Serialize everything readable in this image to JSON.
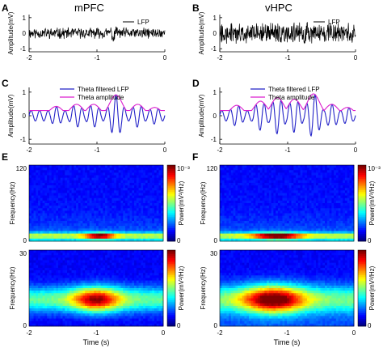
{
  "figure": {
    "col_titles": [
      "mPFC",
      "vHPC"
    ],
    "panel_letters": [
      "A",
      "B",
      "C",
      "D",
      "E",
      "F"
    ]
  },
  "chart_data": [
    {
      "panel": "A",
      "type": "line",
      "ylabel": "Amplitude(mV)",
      "xlim": [
        -2,
        0
      ],
      "ylim": [
        -1.2,
        1.2
      ],
      "xticks": [
        "-2",
        "-1",
        "0"
      ],
      "yticks": [
        "1",
        "0",
        "-1"
      ],
      "legend": [
        "LFP"
      ],
      "series": [
        {
          "name": "LFP",
          "color": "#000000"
        }
      ]
    },
    {
      "panel": "B",
      "type": "line",
      "ylabel": "Amplitude(mV)",
      "xlim": [
        -2,
        0
      ],
      "ylim": [
        -1.2,
        1.2
      ],
      "xticks": [
        "-2",
        "-1",
        "0"
      ],
      "yticks": [
        "1",
        "0",
        "-1"
      ],
      "legend": [
        "LFP"
      ],
      "series": [
        {
          "name": "LFP",
          "color": "#000000"
        }
      ]
    },
    {
      "panel": "C",
      "type": "line",
      "ylabel": "Amplitude(mV)",
      "xlim": [
        -2,
        0
      ],
      "ylim": [
        -1.2,
        1.2
      ],
      "xticks": [
        "-2",
        "-1",
        "0"
      ],
      "yticks": [
        "1",
        "0",
        "-1"
      ],
      "legend": [
        "Theta filtered LFP",
        "Theta amplitude"
      ],
      "series": [
        {
          "name": "Theta filtered LFP",
          "color": "#2323c8"
        },
        {
          "name": "Theta amplitude",
          "color": "#dc1ecf"
        }
      ]
    },
    {
      "panel": "D",
      "type": "line",
      "ylabel": "Amplitude(mV)",
      "xlim": [
        -2,
        0
      ],
      "ylim": [
        -1.2,
        1.2
      ],
      "xticks": [
        "-2",
        "-1",
        "0"
      ],
      "yticks": [
        "1",
        "0",
        "-1"
      ],
      "legend": [
        "Theta filtered LFP",
        "Theta amplitude"
      ],
      "series": [
        {
          "name": "Theta filtered LFP",
          "color": "#2323c8"
        },
        {
          "name": "Theta amplitude",
          "color": "#dc1ecf"
        }
      ]
    },
    {
      "panel": "E",
      "type": "heatmap",
      "subplots": [
        {
          "ylabel": "Frequency(Hz)",
          "ylim": [
            0,
            120
          ],
          "yticks": [
            "120",
            "0"
          ],
          "colorbar_label": "Power(mV²/Hz)",
          "colorbar_top_tick": "10⁻³",
          "colorbar_bottom_tick": "0"
        },
        {
          "ylabel": "Frequency(Hz)",
          "ylim": [
            0,
            30
          ],
          "yticks": [
            "30",
            "0"
          ],
          "colorbar_label": "Power(mV²/Hz)",
          "colorbar_top_tick": "",
          "colorbar_bottom_tick": "0"
        }
      ],
      "xlabel": "Time (s)",
      "xlim": [
        -2,
        0
      ],
      "xticks": [
        "-2",
        "-1",
        "0"
      ],
      "colormap": "jet"
    },
    {
      "panel": "F",
      "type": "heatmap",
      "subplots": [
        {
          "ylabel": "Frequency(Hz)",
          "ylim": [
            0,
            120
          ],
          "yticks": [
            "120",
            "0"
          ],
          "colorbar_label": "Power(mV²/Hz)",
          "colorbar_top_tick": "10⁻³",
          "colorbar_bottom_tick": "0"
        },
        {
          "ylabel": "Frequency(Hz)",
          "ylim": [
            0,
            30
          ],
          "yticks": [
            "30",
            "0"
          ],
          "colorbar_label": "Power(mV²/Hz)",
          "colorbar_top_tick": "",
          "colorbar_bottom_tick": "0"
        }
      ],
      "xlabel": "Time (s)",
      "xlim": [
        -2,
        0
      ],
      "xticks": [
        "-2",
        "-1",
        "0"
      ],
      "colormap": "jet"
    }
  ]
}
